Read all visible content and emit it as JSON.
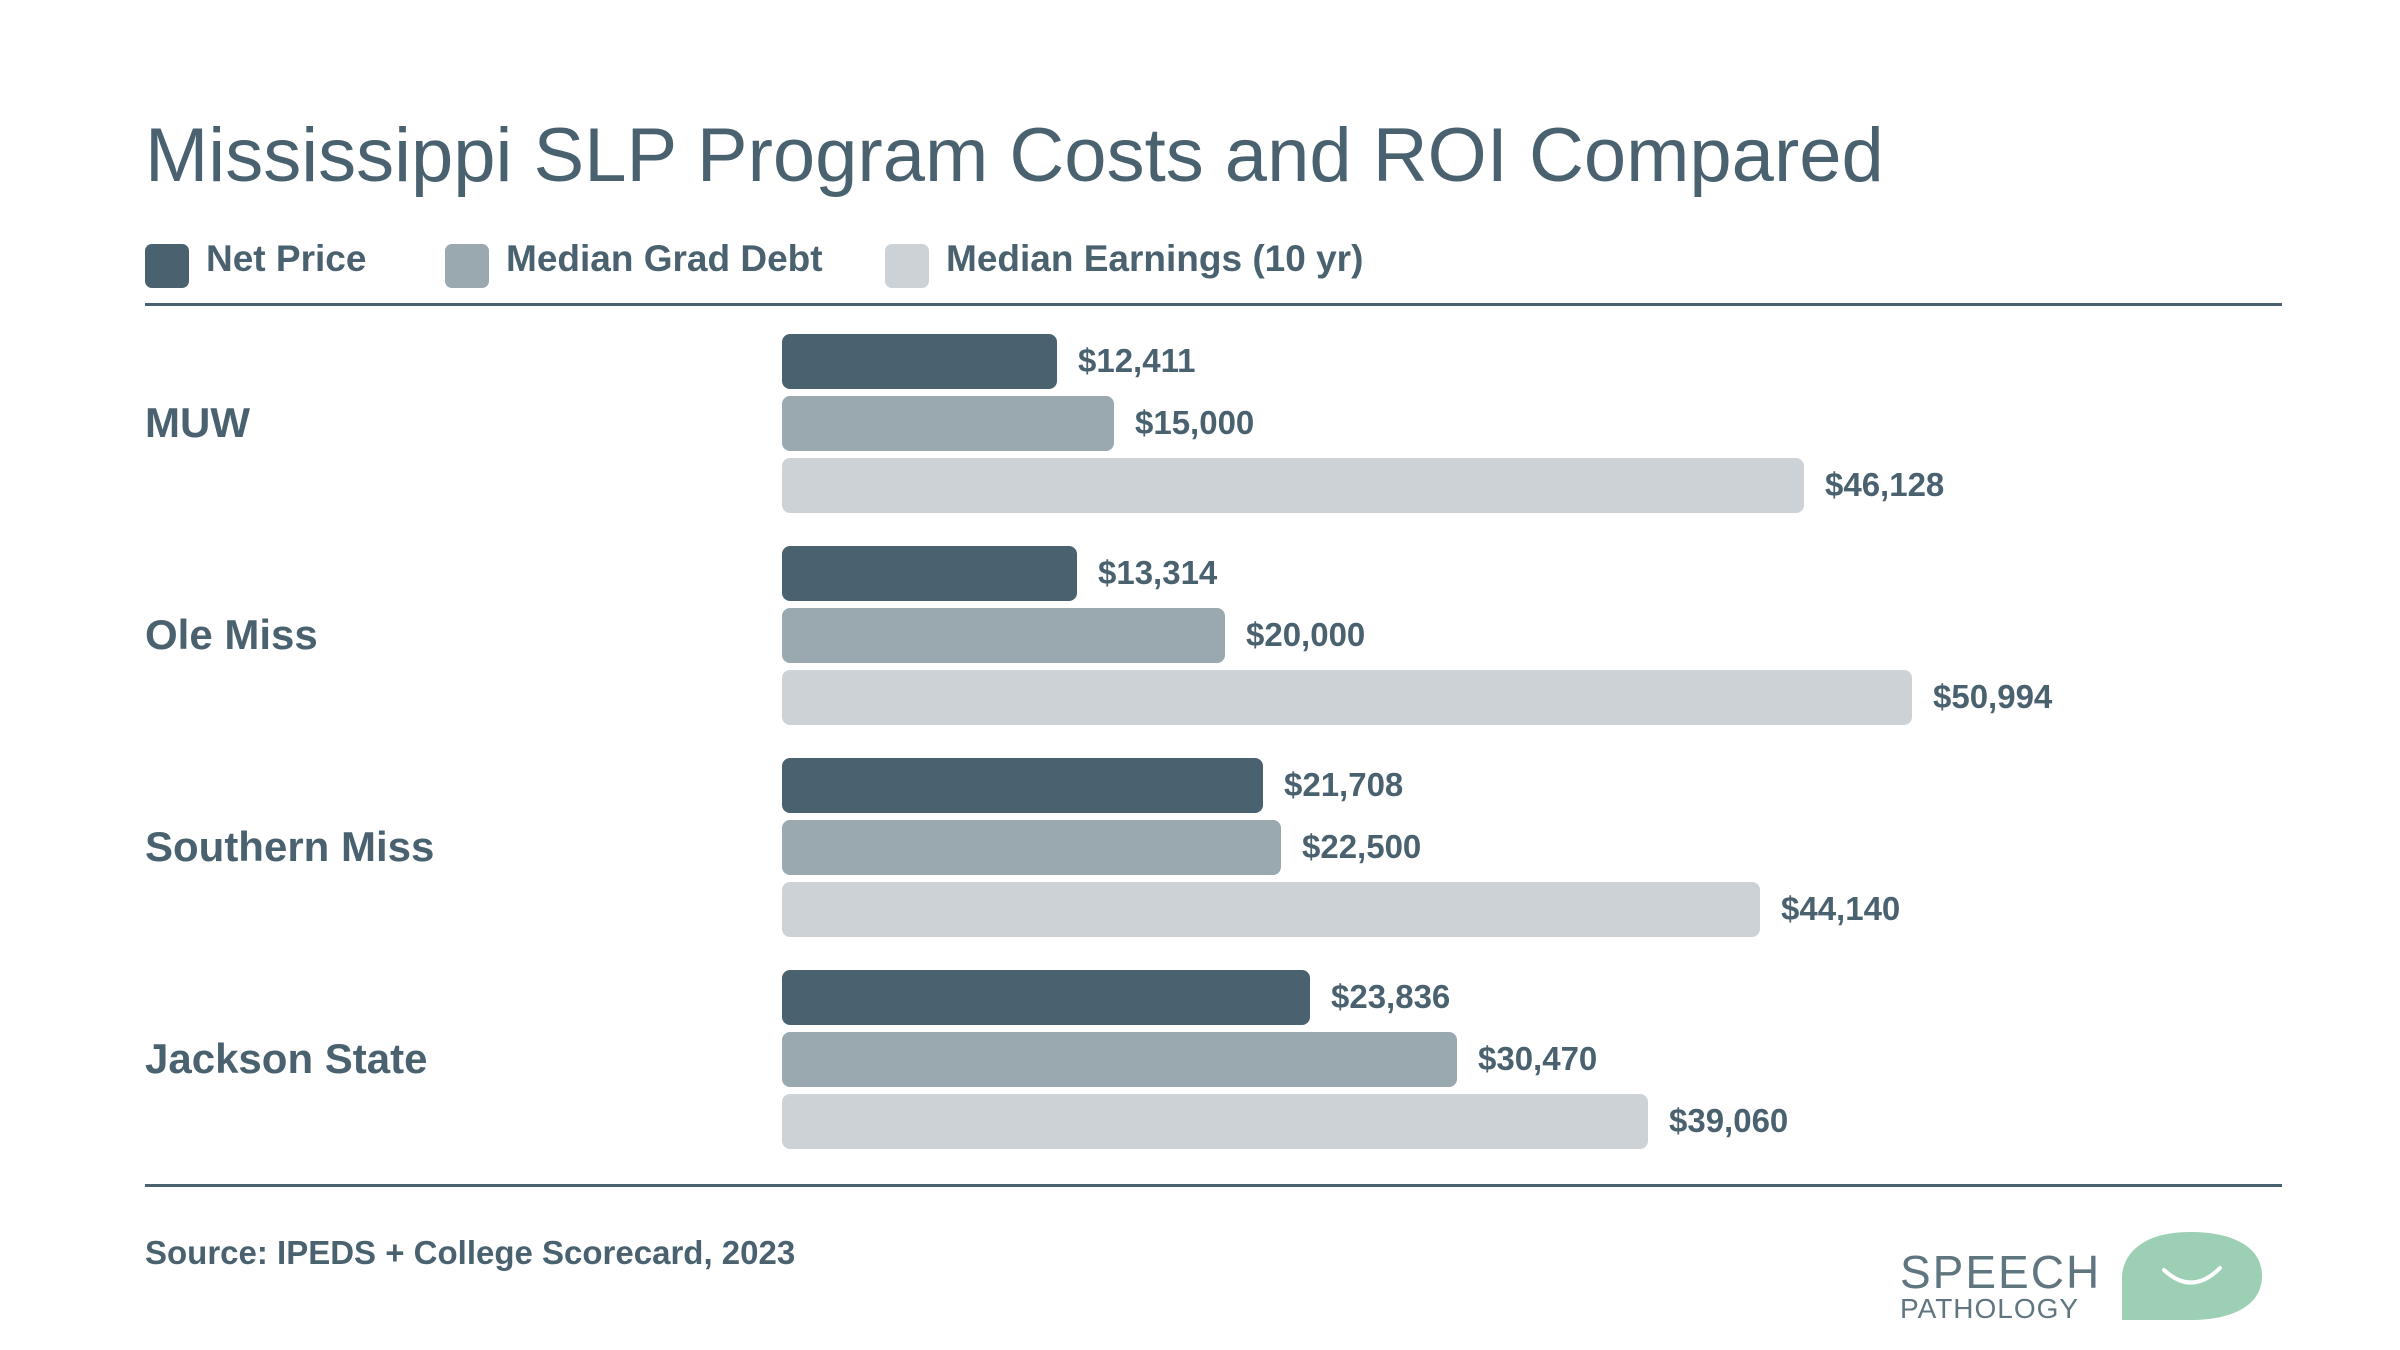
{
  "chart_data": {
    "type": "bar",
    "orientation": "horizontal",
    "title": "Mississippi SLP Program Costs and ROI Compared",
    "categories": [
      "MUW",
      "Ole Miss",
      "Southern Miss",
      "Jackson State"
    ],
    "series": [
      {
        "name": "Net Price",
        "color": "#4a6270",
        "values": [
          12411,
          13314,
          21708,
          23836
        ],
        "labels": [
          "$12,411",
          "$13,314",
          "$21,708",
          "$23,836"
        ]
      },
      {
        "name": "Median Grad Debt",
        "color": "#9aa8af",
        "values": [
          15000,
          20000,
          22500,
          30470
        ],
        "labels": [
          "$15,000",
          "$20,000",
          "$22,500",
          "$30,470"
        ]
      },
      {
        "name": "Median Earnings (10 yr)",
        "color": "#ccd2d6",
        "values": [
          46128,
          50994,
          44140,
          39060
        ],
        "labels": [
          "$46,128",
          "$50,994",
          "$44,140",
          "$39,060"
        ]
      }
    ],
    "legend_position": "top-left",
    "value_axis_visible": false,
    "grid": false
  },
  "source": "Source: IPEDS + College Scorecard, 2023",
  "logo": {
    "line1": "SPEECH",
    "line2": "PATHOLOGY",
    "text_color": "#5f7680",
    "bubble_color": "#9ccfb4",
    "icon": "smile-speech-bubble-icon"
  },
  "colors": {
    "text": "#4a6270",
    "rule": "#4a6270",
    "background": "#ffffff"
  }
}
